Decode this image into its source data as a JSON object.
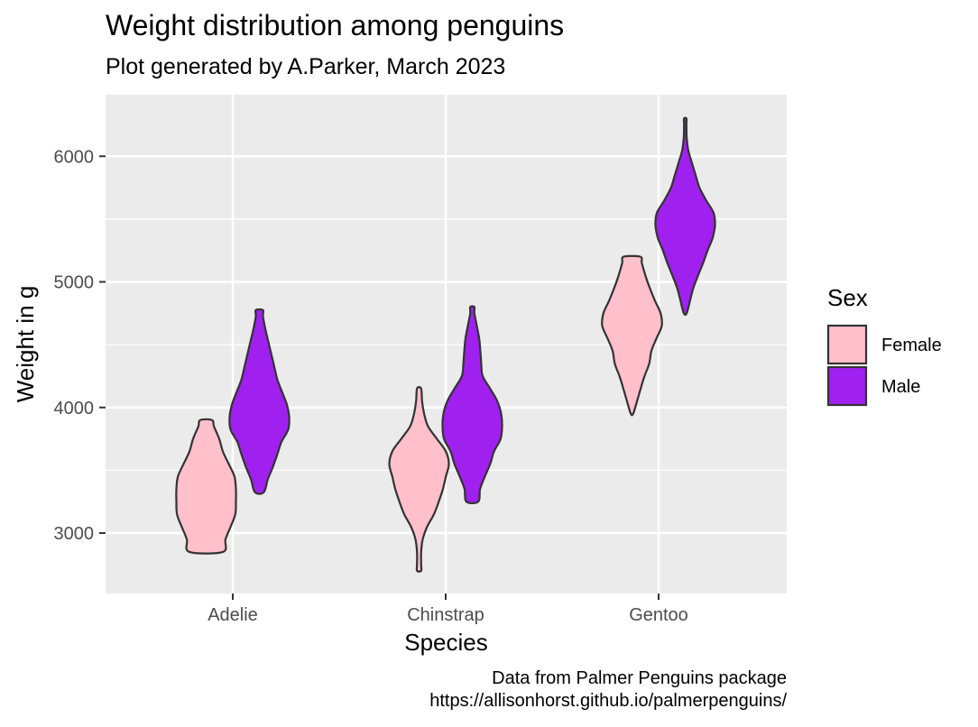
{
  "chart_data": {
    "type": "violin",
    "title": "Weight distribution among penguins",
    "subtitle": "Plot generated by A.Parker, March 2023",
    "caption": [
      "Data from Palmer Penguins package",
      "https://allisonhorst.github.io/palmerpenguins/"
    ],
    "xlabel": "Species",
    "ylabel": "Weight in g",
    "categories": [
      "Adelie",
      "Chinstrap",
      "Gentoo"
    ],
    "y_ticks": [
      3000,
      4000,
      5000,
      6000
    ],
    "ylim": [
      2500,
      6450
    ],
    "grid": true,
    "legend": {
      "title": "Sex",
      "position": "right"
    },
    "colors": {
      "Female": "#ffc0cb",
      "Male": "#a020f0",
      "panel": "#ebebeb",
      "outline": "#333333"
    },
    "series": [
      {
        "name": "Female",
        "violins": [
          {
            "category": "Adelie",
            "min": 2850,
            "max": 3900,
            "profile": [
              [
                2850,
                0.56
              ],
              [
                2950,
                0.65
              ],
              [
                3050,
                0.82
              ],
              [
                3150,
                0.98
              ],
              [
                3250,
                1.0
              ],
              [
                3350,
                1.0
              ],
              [
                3450,
                0.95
              ],
              [
                3550,
                0.76
              ],
              [
                3650,
                0.56
              ],
              [
                3750,
                0.44
              ],
              [
                3850,
                0.26
              ],
              [
                3900,
                0.2
              ]
            ]
          },
          {
            "category": "Chinstrap",
            "min": 2700,
            "max": 4150,
            "profile": [
              [
                2700,
                0.07
              ],
              [
                2750,
                0.07
              ],
              [
                2850,
                0.07
              ],
              [
                2950,
                0.12
              ],
              [
                3050,
                0.27
              ],
              [
                3150,
                0.5
              ],
              [
                3250,
                0.66
              ],
              [
                3350,
                0.8
              ],
              [
                3450,
                0.9
              ],
              [
                3550,
                1.0
              ],
              [
                3650,
                0.9
              ],
              [
                3750,
                0.6
              ],
              [
                3850,
                0.3
              ],
              [
                3950,
                0.17
              ],
              [
                4050,
                0.1
              ],
              [
                4150,
                0.07
              ]
            ]
          },
          {
            "category": "Gentoo",
            "min": 3950,
            "max": 5200,
            "profile": [
              [
                3950,
                0.04
              ],
              [
                4050,
                0.17
              ],
              [
                4150,
                0.29
              ],
              [
                4250,
                0.42
              ],
              [
                4350,
                0.58
              ],
              [
                4450,
                0.65
              ],
              [
                4550,
                0.82
              ],
              [
                4650,
                1.0
              ],
              [
                4750,
                0.96
              ],
              [
                4850,
                0.77
              ],
              [
                4950,
                0.6
              ],
              [
                5050,
                0.45
              ],
              [
                5150,
                0.33
              ],
              [
                5200,
                0.28
              ]
            ]
          }
        ]
      },
      {
        "name": "Male",
        "violins": [
          {
            "category": "Adelie",
            "min": 3325,
            "max": 4775,
            "profile": [
              [
                3325,
                0.15
              ],
              [
                3425,
                0.28
              ],
              [
                3525,
                0.45
              ],
              [
                3625,
                0.6
              ],
              [
                3725,
                0.74
              ],
              [
                3825,
                0.97
              ],
              [
                3925,
                1.0
              ],
              [
                4025,
                0.92
              ],
              [
                4125,
                0.76
              ],
              [
                4225,
                0.6
              ],
              [
                4325,
                0.5
              ],
              [
                4425,
                0.4
              ],
              [
                4525,
                0.3
              ],
              [
                4625,
                0.2
              ],
              [
                4725,
                0.12
              ],
              [
                4775,
                0.12
              ]
            ]
          },
          {
            "category": "Chinstrap",
            "min": 3250,
            "max": 4800,
            "profile": [
              [
                3250,
                0.2
              ],
              [
                3350,
                0.26
              ],
              [
                3450,
                0.42
              ],
              [
                3550,
                0.6
              ],
              [
                3650,
                0.73
              ],
              [
                3750,
                0.95
              ],
              [
                3850,
                1.0
              ],
              [
                3950,
                0.97
              ],
              [
                4050,
                0.84
              ],
              [
                4150,
                0.6
              ],
              [
                4250,
                0.35
              ],
              [
                4350,
                0.3
              ],
              [
                4450,
                0.27
              ],
              [
                4550,
                0.23
              ],
              [
                4650,
                0.15
              ],
              [
                4750,
                0.07
              ],
              [
                4800,
                0.07
              ]
            ]
          },
          {
            "category": "Gentoo",
            "min": 4750,
            "max": 6300,
            "profile": [
              [
                4750,
                0.05
              ],
              [
                4850,
                0.16
              ],
              [
                4950,
                0.27
              ],
              [
                5050,
                0.43
              ],
              [
                5150,
                0.6
              ],
              [
                5250,
                0.75
              ],
              [
                5350,
                0.92
              ],
              [
                5450,
                1.0
              ],
              [
                5550,
                0.95
              ],
              [
                5650,
                0.7
              ],
              [
                5750,
                0.48
              ],
              [
                5850,
                0.35
              ],
              [
                5950,
                0.22
              ],
              [
                6050,
                0.1
              ],
              [
                6150,
                0.05
              ],
              [
                6250,
                0.04
              ],
              [
                6300,
                0.04
              ]
            ]
          }
        ]
      }
    ]
  }
}
